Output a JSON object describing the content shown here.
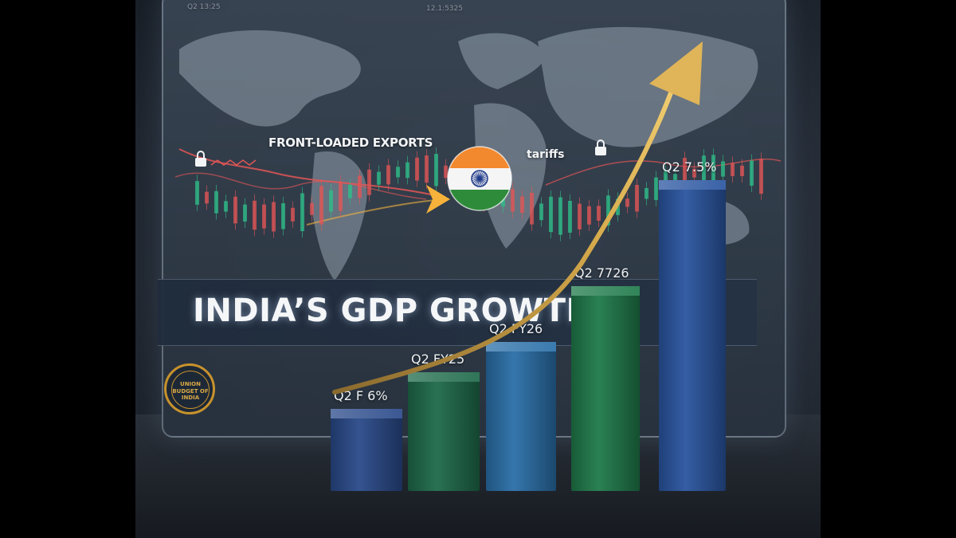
{
  "screen": {
    "ticker_left": "Q2 13:25",
    "ticker_mid": "12.1:5325"
  },
  "map_labels": {
    "front_loaded": "FRONT-LOADED EXPORTS",
    "tariffs": "tariffs"
  },
  "title": "INDIA’S GDP GROWTH",
  "seal": {
    "line1": "UNION",
    "line2": "BUDGET OF INDIA"
  },
  "bars": [
    {
      "label": "Q2 F 6%",
      "color": "#2a4a8a",
      "level": 0.18
    },
    {
      "label": "Q2 FY25",
      "color": "#1e6a4a",
      "level": 0.31
    },
    {
      "label": "Q2 FY26",
      "color": "#2a6fa8",
      "level": 0.42
    },
    {
      "label": "Q2 7726",
      "color": "#1f7a4a",
      "level": 0.62
    },
    {
      "label": "Q2 7.5%",
      "color": "#2a55a0",
      "level": 1.0
    }
  ],
  "colors": {
    "arrow_gold": "#d4a84a",
    "flag_saffron": "#f2892e",
    "flag_green": "#2e8b3a",
    "chakra_blue": "#1f3a8a",
    "bear_red": "#e25656",
    "bull_green": "#2fbf8a"
  },
  "icons": [
    "lock-icon",
    "india-flag-icon",
    "trend-arrow-icon",
    "world-map-icon"
  ]
}
